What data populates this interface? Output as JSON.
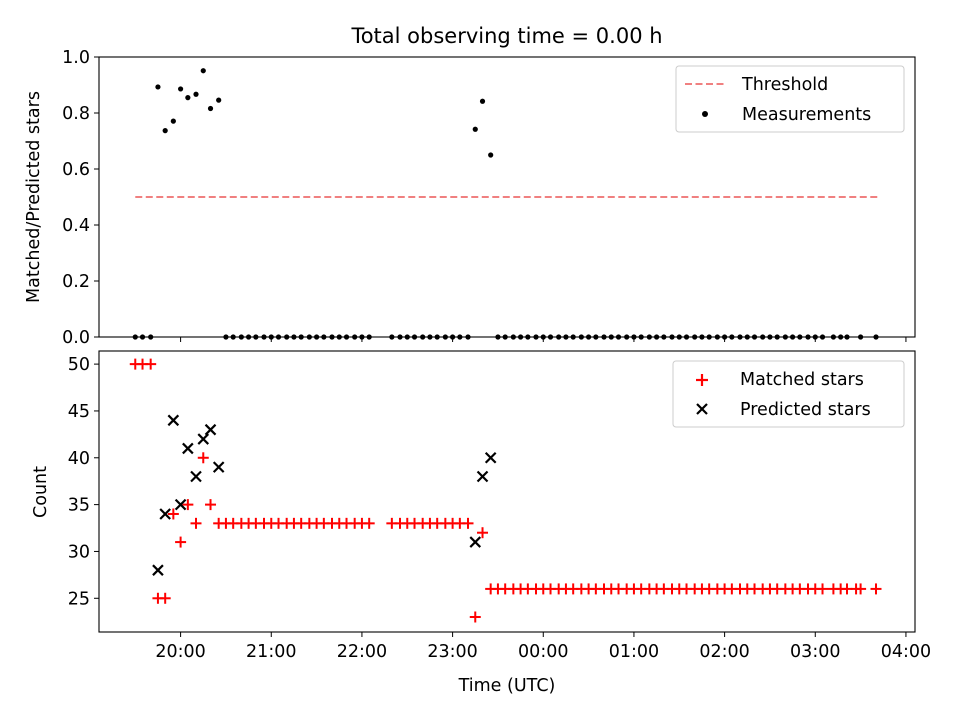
{
  "chart_data": [
    {
      "type": "line",
      "title": "Total observing time = 0.00 h",
      "xlabel": "",
      "ylabel": "Matched/Predicted stars",
      "ylim": [
        0.0,
        1.0
      ],
      "xlim_hours": [
        19.1,
        28.1
      ],
      "yticks": [
        0.0,
        0.2,
        0.4,
        0.6,
        0.8,
        1.0
      ],
      "ytick_labels": [
        "0.0",
        "0.2",
        "0.4",
        "0.6",
        "0.8",
        "1.0"
      ],
      "legend_position": "top-right",
      "threshold": {
        "name": "Threshold",
        "value": 0.5,
        "x_range": [
          19.5,
          27.7
        ],
        "color": "#f08080",
        "style": "dashed"
      },
      "measurements": {
        "name": "Measurements",
        "color": "#000000",
        "points": [
          [
            19.5,
            0
          ],
          [
            19.58,
            0
          ],
          [
            19.67,
            0
          ],
          [
            19.75,
            0.893
          ],
          [
            19.83,
            0.737
          ],
          [
            19.92,
            0.771
          ],
          [
            20.0,
            0.886
          ],
          [
            20.08,
            0.855
          ],
          [
            20.17,
            0.867
          ],
          [
            20.25,
            0.951
          ],
          [
            20.33,
            0.816
          ],
          [
            20.42,
            0.846
          ],
          [
            20.5,
            0
          ],
          [
            20.58,
            0
          ],
          [
            20.67,
            0
          ],
          [
            20.75,
            0
          ],
          [
            20.83,
            0
          ],
          [
            20.92,
            0
          ],
          [
            21.0,
            0
          ],
          [
            21.08,
            0
          ],
          [
            21.17,
            0
          ],
          [
            21.25,
            0
          ],
          [
            21.33,
            0
          ],
          [
            21.42,
            0
          ],
          [
            21.5,
            0
          ],
          [
            21.58,
            0
          ],
          [
            21.67,
            0
          ],
          [
            21.75,
            0
          ],
          [
            21.83,
            0
          ],
          [
            21.92,
            0
          ],
          [
            22.0,
            0
          ],
          [
            22.08,
            0
          ],
          [
            22.33,
            0
          ],
          [
            22.42,
            0
          ],
          [
            22.5,
            0
          ],
          [
            22.58,
            0
          ],
          [
            22.67,
            0
          ],
          [
            22.75,
            0
          ],
          [
            22.83,
            0
          ],
          [
            22.92,
            0
          ],
          [
            23.0,
            0
          ],
          [
            23.08,
            0
          ],
          [
            23.17,
            0
          ],
          [
            23.25,
            0.742
          ],
          [
            23.33,
            0.842
          ],
          [
            23.42,
            0.65
          ],
          [
            23.5,
            0
          ],
          [
            23.58,
            0
          ],
          [
            23.67,
            0
          ],
          [
            23.75,
            0
          ],
          [
            23.83,
            0
          ],
          [
            23.92,
            0
          ],
          [
            24.0,
            0
          ],
          [
            24.08,
            0
          ],
          [
            24.17,
            0
          ],
          [
            24.25,
            0
          ],
          [
            24.33,
            0
          ],
          [
            24.42,
            0
          ],
          [
            24.5,
            0
          ],
          [
            24.58,
            0
          ],
          [
            24.67,
            0
          ],
          [
            24.75,
            0
          ],
          [
            24.83,
            0
          ],
          [
            24.92,
            0
          ],
          [
            25.0,
            0
          ],
          [
            25.08,
            0
          ],
          [
            25.17,
            0
          ],
          [
            25.25,
            0
          ],
          [
            25.33,
            0
          ],
          [
            25.42,
            0
          ],
          [
            25.5,
            0
          ],
          [
            25.58,
            0
          ],
          [
            25.67,
            0
          ],
          [
            25.75,
            0
          ],
          [
            25.83,
            0
          ],
          [
            25.92,
            0
          ],
          [
            26.0,
            0
          ],
          [
            26.08,
            0
          ],
          [
            26.17,
            0
          ],
          [
            26.25,
            0
          ],
          [
            26.33,
            0
          ],
          [
            26.42,
            0
          ],
          [
            26.5,
            0
          ],
          [
            26.58,
            0
          ],
          [
            26.67,
            0
          ],
          [
            26.75,
            0
          ],
          [
            26.83,
            0
          ],
          [
            26.92,
            0
          ],
          [
            27.0,
            0
          ],
          [
            27.08,
            0
          ],
          [
            27.2,
            0
          ],
          [
            27.28,
            0
          ],
          [
            27.35,
            0
          ],
          [
            27.5,
            0
          ],
          [
            27.67,
            0
          ]
        ]
      }
    },
    {
      "type": "scatter",
      "title": "",
      "xlabel": "Time (UTC)",
      "ylabel": "Count",
      "ylim": [
        21.4,
        51.4
      ],
      "xlim_hours": [
        19.1,
        28.1
      ],
      "yticks": [
        25,
        30,
        35,
        40,
        45,
        50
      ],
      "ytick_labels": [
        "25",
        "30",
        "35",
        "40",
        "45",
        "50"
      ],
      "xticks_hours": [
        20,
        21,
        22,
        23,
        24,
        25,
        26,
        27,
        28
      ],
      "xtick_labels": [
        "20:00",
        "21:00",
        "22:00",
        "23:00",
        "00:00",
        "01:00",
        "02:00",
        "03:00",
        "04:00"
      ],
      "legend_position": "top-right",
      "series": [
        {
          "name": "Matched stars",
          "marker": "plus",
          "color": "#ff0000",
          "points": [
            [
              19.5,
              50
            ],
            [
              19.58,
              50
            ],
            [
              19.67,
              50
            ],
            [
              19.75,
              25
            ],
            [
              19.83,
              25
            ],
            [
              19.92,
              34
            ],
            [
              20.0,
              31
            ],
            [
              20.08,
              35
            ],
            [
              20.17,
              33
            ],
            [
              20.25,
              40
            ],
            [
              20.33,
              35
            ],
            [
              20.42,
              33
            ],
            [
              20.5,
              33
            ],
            [
              20.58,
              33
            ],
            [
              20.67,
              33
            ],
            [
              20.75,
              33
            ],
            [
              20.83,
              33
            ],
            [
              20.92,
              33
            ],
            [
              21.0,
              33
            ],
            [
              21.08,
              33
            ],
            [
              21.17,
              33
            ],
            [
              21.25,
              33
            ],
            [
              21.33,
              33
            ],
            [
              21.42,
              33
            ],
            [
              21.5,
              33
            ],
            [
              21.58,
              33
            ],
            [
              21.67,
              33
            ],
            [
              21.75,
              33
            ],
            [
              21.83,
              33
            ],
            [
              21.92,
              33
            ],
            [
              22.0,
              33
            ],
            [
              22.08,
              33
            ],
            [
              22.33,
              33
            ],
            [
              22.42,
              33
            ],
            [
              22.5,
              33
            ],
            [
              22.58,
              33
            ],
            [
              22.67,
              33
            ],
            [
              22.75,
              33
            ],
            [
              22.83,
              33
            ],
            [
              22.92,
              33
            ],
            [
              23.0,
              33
            ],
            [
              23.08,
              33
            ],
            [
              23.17,
              33
            ],
            [
              23.25,
              23
            ],
            [
              23.33,
              32
            ],
            [
              23.42,
              26
            ],
            [
              23.5,
              26
            ],
            [
              23.58,
              26
            ],
            [
              23.67,
              26
            ],
            [
              23.75,
              26
            ],
            [
              23.83,
              26
            ],
            [
              23.92,
              26
            ],
            [
              24.0,
              26
            ],
            [
              24.08,
              26
            ],
            [
              24.17,
              26
            ],
            [
              24.25,
              26
            ],
            [
              24.33,
              26
            ],
            [
              24.42,
              26
            ],
            [
              24.5,
              26
            ],
            [
              24.58,
              26
            ],
            [
              24.67,
              26
            ],
            [
              24.75,
              26
            ],
            [
              24.83,
              26
            ],
            [
              24.92,
              26
            ],
            [
              25.0,
              26
            ],
            [
              25.08,
              26
            ],
            [
              25.17,
              26
            ],
            [
              25.25,
              26
            ],
            [
              25.33,
              26
            ],
            [
              25.42,
              26
            ],
            [
              25.5,
              26
            ],
            [
              25.58,
              26
            ],
            [
              25.67,
              26
            ],
            [
              25.75,
              26
            ],
            [
              25.83,
              26
            ],
            [
              25.92,
              26
            ],
            [
              26.0,
              26
            ],
            [
              26.08,
              26
            ],
            [
              26.17,
              26
            ],
            [
              26.25,
              26
            ],
            [
              26.33,
              26
            ],
            [
              26.42,
              26
            ],
            [
              26.5,
              26
            ],
            [
              26.58,
              26
            ],
            [
              26.67,
              26
            ],
            [
              26.75,
              26
            ],
            [
              26.83,
              26
            ],
            [
              26.92,
              26
            ],
            [
              27.0,
              26
            ],
            [
              27.08,
              26
            ],
            [
              27.2,
              26
            ],
            [
              27.28,
              26
            ],
            [
              27.35,
              26
            ],
            [
              27.45,
              26
            ],
            [
              27.5,
              26
            ],
            [
              27.67,
              26
            ]
          ]
        },
        {
          "name": "Predicted stars",
          "marker": "x",
          "color": "#000000",
          "points": [
            [
              19.75,
              28
            ],
            [
              19.83,
              34
            ],
            [
              19.92,
              44
            ],
            [
              20.0,
              35
            ],
            [
              20.08,
              41
            ],
            [
              20.17,
              38
            ],
            [
              20.25,
              42
            ],
            [
              20.33,
              43
            ],
            [
              20.42,
              39
            ],
            [
              23.25,
              31
            ],
            [
              23.33,
              38
            ],
            [
              23.42,
              40
            ]
          ]
        }
      ]
    }
  ]
}
